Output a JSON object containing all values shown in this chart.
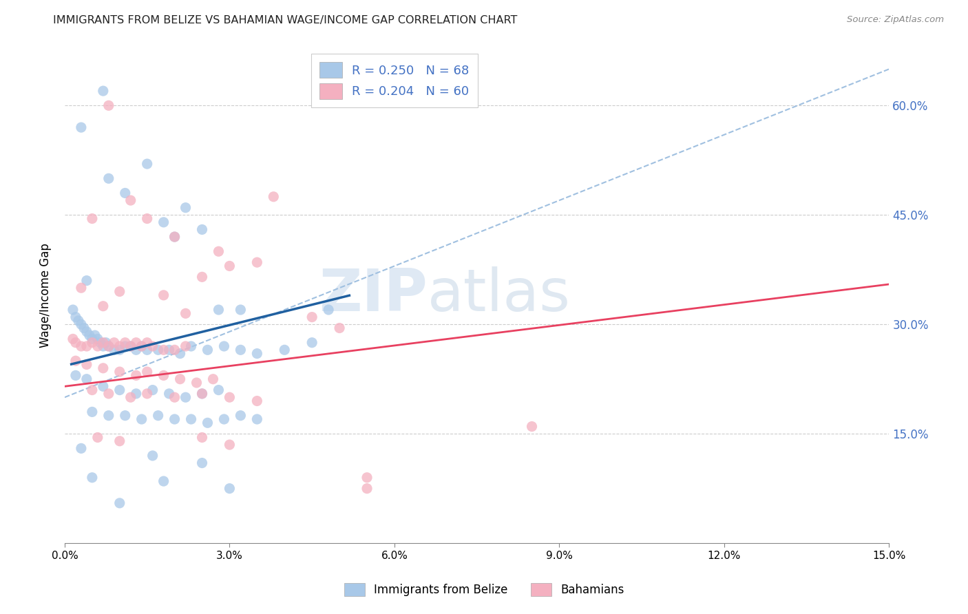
{
  "title": "IMMIGRANTS FROM BELIZE VS BAHAMIAN WAGE/INCOME GAP CORRELATION CHART",
  "source": "Source: ZipAtlas.com",
  "ylabel": "Wage/Income Gap",
  "y_ticks_right": [
    15.0,
    30.0,
    45.0,
    60.0
  ],
  "legend_label_blue": "Immigrants from Belize",
  "legend_label_pink": "Bahamians",
  "blue_color": "#a8c8e8",
  "pink_color": "#f4b0c0",
  "blue_line_color": "#2060a0",
  "pink_line_color": "#e84060",
  "dashed_line_color": "#a0c0e0",
  "blue_scatter": [
    [
      0.3,
      57.0
    ],
    [
      0.7,
      62.0
    ],
    [
      1.1,
      48.0
    ],
    [
      1.5,
      52.0
    ],
    [
      2.2,
      46.0
    ],
    [
      2.5,
      43.0
    ],
    [
      0.8,
      50.0
    ],
    [
      1.8,
      44.0
    ],
    [
      0.4,
      36.0
    ],
    [
      2.0,
      42.0
    ],
    [
      2.8,
      32.0
    ],
    [
      3.2,
      32.0
    ],
    [
      4.8,
      32.0
    ],
    [
      0.15,
      32.0
    ],
    [
      0.2,
      31.0
    ],
    [
      0.25,
      30.5
    ],
    [
      0.3,
      30.0
    ],
    [
      0.35,
      29.5
    ],
    [
      0.4,
      29.0
    ],
    [
      0.45,
      28.5
    ],
    [
      0.5,
      28.0
    ],
    [
      0.55,
      28.5
    ],
    [
      0.6,
      28.0
    ],
    [
      0.65,
      27.5
    ],
    [
      0.7,
      27.0
    ],
    [
      0.75,
      27.5
    ],
    [
      0.8,
      27.0
    ],
    [
      0.9,
      26.5
    ],
    [
      1.0,
      26.5
    ],
    [
      1.1,
      27.0
    ],
    [
      1.2,
      27.0
    ],
    [
      1.3,
      26.5
    ],
    [
      1.4,
      27.0
    ],
    [
      1.5,
      26.5
    ],
    [
      1.7,
      26.5
    ],
    [
      1.9,
      26.5
    ],
    [
      2.1,
      26.0
    ],
    [
      2.3,
      27.0
    ],
    [
      2.6,
      26.5
    ],
    [
      2.9,
      27.0
    ],
    [
      3.2,
      26.5
    ],
    [
      3.5,
      26.0
    ],
    [
      4.0,
      26.5
    ],
    [
      4.5,
      27.5
    ],
    [
      0.2,
      23.0
    ],
    [
      0.4,
      22.5
    ],
    [
      0.7,
      21.5
    ],
    [
      1.0,
      21.0
    ],
    [
      1.3,
      20.5
    ],
    [
      1.6,
      21.0
    ],
    [
      1.9,
      20.5
    ],
    [
      2.2,
      20.0
    ],
    [
      2.5,
      20.5
    ],
    [
      2.8,
      21.0
    ],
    [
      0.5,
      18.0
    ],
    [
      0.8,
      17.5
    ],
    [
      1.1,
      17.5
    ],
    [
      1.4,
      17.0
    ],
    [
      1.7,
      17.5
    ],
    [
      2.0,
      17.0
    ],
    [
      2.3,
      17.0
    ],
    [
      2.6,
      16.5
    ],
    [
      2.9,
      17.0
    ],
    [
      3.2,
      17.5
    ],
    [
      3.5,
      17.0
    ],
    [
      0.3,
      13.0
    ],
    [
      1.6,
      12.0
    ],
    [
      2.5,
      11.0
    ],
    [
      0.5,
      9.0
    ],
    [
      1.8,
      8.5
    ],
    [
      3.0,
      7.5
    ],
    [
      1.0,
      5.5
    ]
  ],
  "pink_scatter": [
    [
      0.8,
      60.0
    ],
    [
      3.8,
      47.5
    ],
    [
      1.2,
      47.0
    ],
    [
      1.5,
      44.5
    ],
    [
      2.0,
      42.0
    ],
    [
      0.5,
      44.5
    ],
    [
      2.8,
      40.0
    ],
    [
      3.0,
      38.0
    ],
    [
      2.5,
      36.5
    ],
    [
      3.5,
      38.5
    ],
    [
      0.3,
      35.0
    ],
    [
      1.0,
      34.5
    ],
    [
      1.8,
      34.0
    ],
    [
      0.7,
      32.5
    ],
    [
      2.2,
      31.5
    ],
    [
      4.5,
      31.0
    ],
    [
      5.0,
      29.5
    ],
    [
      0.15,
      28.0
    ],
    [
      0.2,
      27.5
    ],
    [
      0.3,
      27.0
    ],
    [
      0.4,
      27.0
    ],
    [
      0.5,
      27.5
    ],
    [
      0.6,
      27.0
    ],
    [
      0.7,
      27.5
    ],
    [
      0.8,
      27.0
    ],
    [
      0.9,
      27.5
    ],
    [
      1.0,
      27.0
    ],
    [
      1.1,
      27.5
    ],
    [
      1.2,
      27.0
    ],
    [
      1.3,
      27.5
    ],
    [
      1.4,
      27.0
    ],
    [
      1.5,
      27.5
    ],
    [
      1.6,
      27.0
    ],
    [
      1.8,
      26.5
    ],
    [
      2.0,
      26.5
    ],
    [
      2.2,
      27.0
    ],
    [
      0.2,
      25.0
    ],
    [
      0.4,
      24.5
    ],
    [
      0.7,
      24.0
    ],
    [
      1.0,
      23.5
    ],
    [
      1.3,
      23.0
    ],
    [
      1.5,
      23.5
    ],
    [
      1.8,
      23.0
    ],
    [
      2.1,
      22.5
    ],
    [
      2.4,
      22.0
    ],
    [
      2.7,
      22.5
    ],
    [
      0.5,
      21.0
    ],
    [
      0.8,
      20.5
    ],
    [
      1.2,
      20.0
    ],
    [
      1.5,
      20.5
    ],
    [
      2.0,
      20.0
    ],
    [
      2.5,
      20.5
    ],
    [
      3.0,
      20.0
    ],
    [
      3.5,
      19.5
    ],
    [
      8.5,
      16.0
    ],
    [
      0.6,
      14.5
    ],
    [
      1.0,
      14.0
    ],
    [
      2.5,
      14.5
    ],
    [
      3.0,
      13.5
    ],
    [
      5.5,
      9.0
    ],
    [
      5.5,
      7.5
    ]
  ],
  "xlim": [
    0,
    15.0
  ],
  "ylim": [
    0,
    68
  ],
  "blue_line_x": [
    0.1,
    5.2
  ],
  "blue_line_y": [
    24.5,
    34.0
  ],
  "pink_line_x": [
    0.0,
    15.0
  ],
  "pink_line_y": [
    21.5,
    35.5
  ],
  "dashed_line_x": [
    0.0,
    15.0
  ],
  "dashed_line_y": [
    20.0,
    65.0
  ],
  "watermark_zip": "ZIP",
  "watermark_atlas": "atlas",
  "background_color": "#ffffff",
  "grid_color": "#cccccc"
}
